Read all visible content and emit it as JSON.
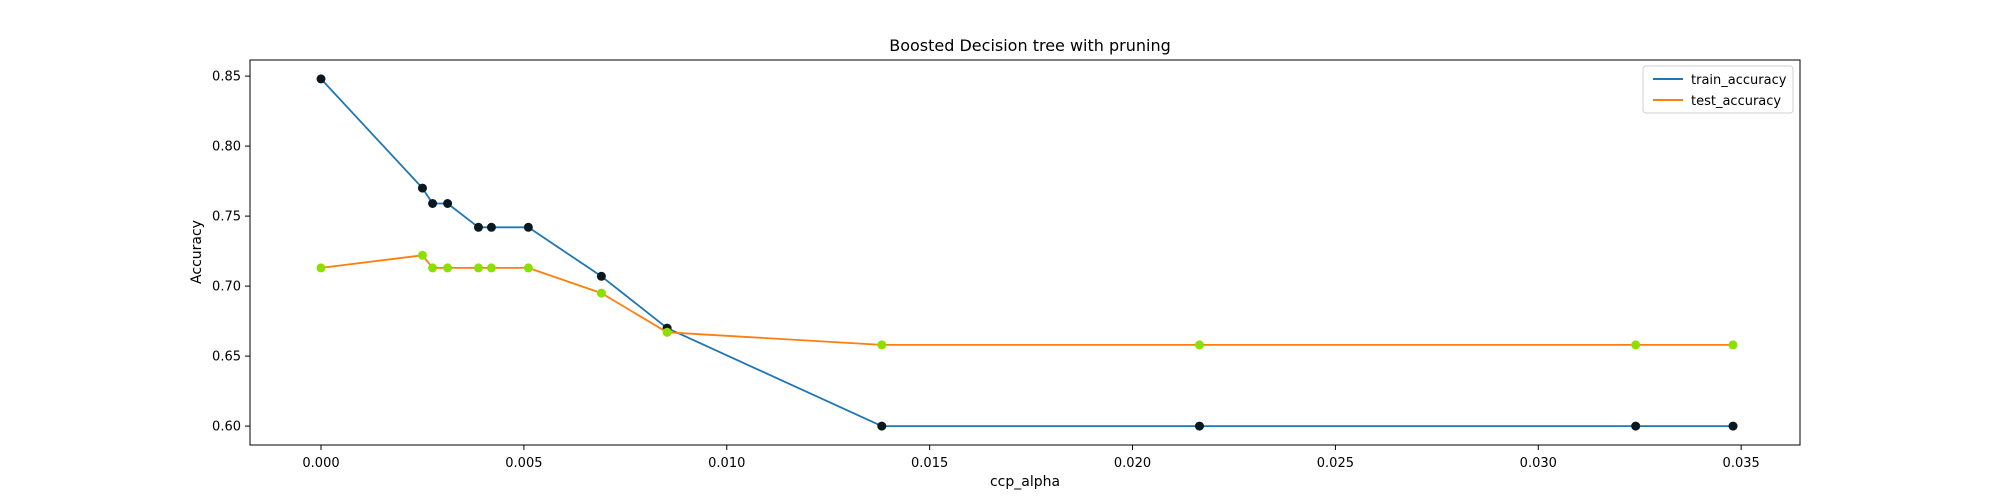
{
  "chart_data": {
    "type": "line",
    "title": "Boosted Decision tree with pruning",
    "xlabel": "ccp_alpha",
    "ylabel": "Accuracy",
    "xlim": [
      -0.00175,
      0.03645
    ],
    "ylim": [
      0.5865,
      0.8615
    ],
    "xticks": [
      0.0,
      0.005,
      0.01,
      0.015,
      0.02,
      0.025,
      0.03,
      0.035
    ],
    "xtick_labels": [
      "0.000",
      "0.005",
      "0.010",
      "0.015",
      "0.020",
      "0.025",
      "0.030",
      "0.035"
    ],
    "yticks": [
      0.6,
      0.65,
      0.7,
      0.75,
      0.8,
      0.85
    ],
    "ytick_labels": [
      "0.60",
      "0.65",
      "0.70",
      "0.75",
      "0.80",
      "0.85"
    ],
    "grid": false,
    "legend": {
      "placement": "top-right"
    },
    "x": [
      0.0,
      0.0025,
      0.00275,
      0.00312,
      0.00388,
      0.0042,
      0.00511,
      0.00691,
      0.00853,
      0.01382,
      0.02165,
      0.0324,
      0.0348
    ],
    "series": [
      {
        "name": "train_accuracy",
        "color": "#1f77b4",
        "marker_color": "#0b1820",
        "values": [
          0.848,
          0.77,
          0.759,
          0.759,
          0.742,
          0.742,
          0.742,
          0.707,
          0.67,
          0.6,
          0.6,
          0.6,
          0.6
        ]
      },
      {
        "name": "test_accuracy",
        "color": "#ff7f0e",
        "marker_color": "#8ddf00",
        "values": [
          0.713,
          0.722,
          0.713,
          0.713,
          0.713,
          0.713,
          0.713,
          0.695,
          0.667,
          0.658,
          0.658,
          0.658,
          0.658
        ]
      }
    ]
  }
}
